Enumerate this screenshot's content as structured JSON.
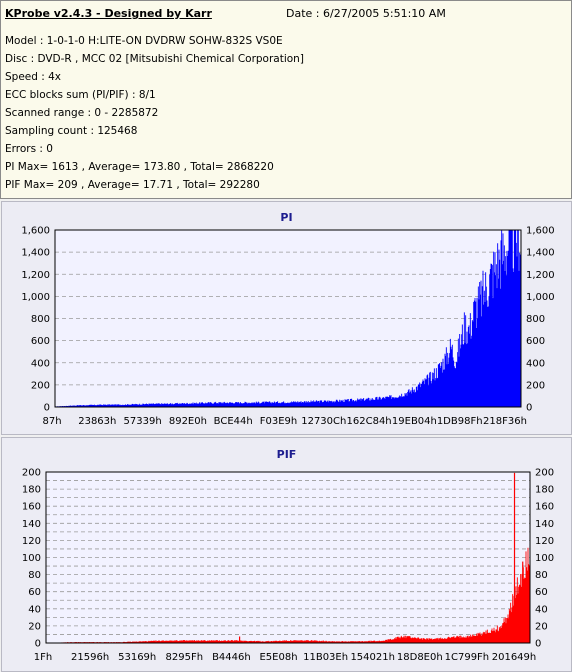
{
  "header": {
    "title": "KProbe v2.4.3 - Designed by Karr",
    "date": "Date : 6/27/2005 5:51:10 AM",
    "lines": [
      "Model : 1-0-1-0 H:LITE-ON DVDRW SOHW-832S  VS0E",
      "Disc : DVD-R , MCC 02 [Mitsubishi Chemical Corporation]",
      "Speed : 4x",
      "ECC blocks sum (PI/PIF) : 8/1",
      "Scanned range : 0 - 2285872",
      "Sampling count : 125468",
      "Errors : 0",
      "PI Max= 1613 , Average= 173.80 , Total= 2868220",
      "PIF Max= 209 , Average= 17.71 , Total= 292280"
    ]
  },
  "chart_data": [
    {
      "type": "area",
      "title": "PI",
      "color": "#0000ff",
      "ylim": [
        0,
        1600
      ],
      "yticks": [
        "0",
        "200",
        "400",
        "600",
        "800",
        "1,000",
        "1,200",
        "1,400",
        "1,600"
      ],
      "xtick_labels": [
        "87h",
        "23863h",
        "57339h",
        "892E0h",
        "BCE44h",
        "F03E9h",
        "12730Ch",
        "162C84h",
        "19EB04h",
        "1DB98Fh",
        "218F36h"
      ],
      "series": [
        {
          "x": [
            0,
            0.05,
            0.1,
            0.15,
            0.2,
            0.25,
            0.3,
            0.35,
            0.4,
            0.45,
            0.5,
            0.55,
            0.6,
            0.65,
            0.7,
            0.72,
            0.74,
            0.76,
            0.78,
            0.8,
            0.82,
            0.84,
            0.85,
            0.86,
            0.87,
            0.88,
            0.89,
            0.9,
            0.91,
            0.92,
            0.93,
            0.94,
            0.95,
            0.96,
            0.97,
            0.98,
            0.99,
            1.0
          ],
          "values": [
            5,
            15,
            20,
            22,
            28,
            30,
            35,
            40,
            40,
            42,
            45,
            50,
            55,
            65,
            80,
            90,
            110,
            140,
            190,
            250,
            330,
            460,
            560,
            430,
            600,
            760,
            720,
            900,
            960,
            1050,
            1150,
            1250,
            1340,
            1420,
            1490,
            1540,
            1580,
            1610
          ]
        }
      ]
    },
    {
      "type": "area",
      "title": "PIF",
      "color": "#ff0000",
      "ylim": [
        0,
        210
      ],
      "yticks": [
        "0",
        "10",
        "20",
        "30",
        "40",
        "50",
        "60",
        "70",
        "80",
        "90",
        "100",
        "110",
        "120",
        "130",
        "140",
        "150",
        "160",
        "170",
        "180",
        "190",
        "200"
      ],
      "xtick_labels": [
        "1Fh",
        "21596h",
        "53169h",
        "8295Fh",
        "B4446h",
        "E5E08h",
        "11B03Eh",
        "154021h",
        "18D8E0h",
        "1C799Fh",
        "201649h"
      ],
      "series": [
        {
          "x": [
            0,
            0.05,
            0.1,
            0.15,
            0.2,
            0.25,
            0.3,
            0.35,
            0.4,
            0.45,
            0.5,
            0.55,
            0.6,
            0.65,
            0.7,
            0.72,
            0.74,
            0.76,
            0.78,
            0.8,
            0.82,
            0.84,
            0.86,
            0.88,
            0.9,
            0.92,
            0.94,
            0.95,
            0.96,
            0.97,
            0.98,
            0.99,
            1.0
          ],
          "values": [
            0,
            1,
            1,
            1,
            2,
            3,
            3,
            3,
            3,
            2,
            3,
            3,
            2,
            2,
            3,
            6,
            8,
            7,
            5,
            5,
            6,
            7,
            8,
            9,
            12,
            15,
            20,
            30,
            45,
            60,
            80,
            100,
            120
          ]
        }
      ],
      "spikes": [
        {
          "x": 0.968,
          "value": 209
        },
        {
          "x": 0.985,
          "value": 100
        },
        {
          "x": 0.4,
          "value": 8
        }
      ]
    }
  ]
}
